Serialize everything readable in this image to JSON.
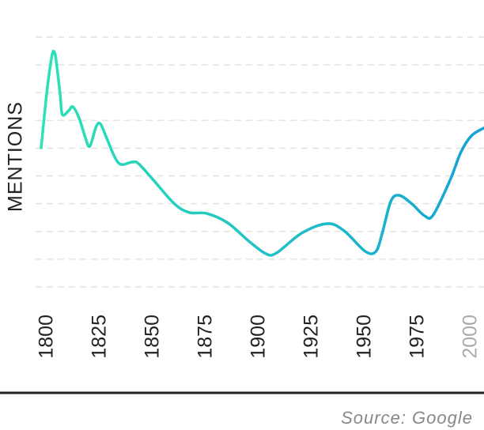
{
  "chart_data": {
    "type": "line",
    "y_label": "MENTIONS",
    "source": "Source: Google",
    "x": [
      1797,
      1798,
      1800,
      1802,
      1803,
      1804,
      1806,
      1807,
      1810,
      1812,
      1815,
      1818,
      1820,
      1823,
      1825,
      1828,
      1832,
      1835,
      1840,
      1843,
      1850,
      1860,
      1867,
      1875,
      1885,
      1895,
      1903,
      1908,
      1920,
      1932,
      1940,
      1950,
      1955,
      1958,
      1962,
      1966,
      1972,
      1978,
      1982,
      1990,
      1995,
      2000,
      2006
    ],
    "series": [
      {
        "name": "Mentions",
        "colors": [
          "#2de2b6",
          "#14a2d4"
        ],
        "values": [
          5.01,
          5.78,
          7.21,
          8.29,
          8.49,
          8.2,
          6.92,
          6.21,
          6.35,
          6.49,
          6.07,
          5.35,
          5.07,
          5.78,
          5.87,
          5.35,
          4.64,
          4.41,
          4.5,
          4.44,
          3.85,
          2.99,
          2.68,
          2.65,
          2.31,
          1.65,
          1.2,
          1.22,
          1.94,
          2.28,
          2.02,
          1.28,
          1.28,
          1.94,
          3.08,
          3.3,
          2.99,
          2.56,
          2.59,
          3.85,
          4.84,
          5.44,
          5.73
        ]
      }
    ],
    "xlim": [
      1797,
      2006
    ],
    "xticks": [
      1800,
      1825,
      1850,
      1875,
      1900,
      1925,
      1950,
      1975,
      2000
    ],
    "xtick_label_colors": [
      "#222",
      "#222",
      "#222",
      "#222",
      "#222",
      "#222",
      "#222",
      "#222",
      "#aaa"
    ],
    "ylim": [
      0,
      9
    ],
    "yticks": [
      0,
      1,
      2,
      3,
      4,
      5,
      6,
      7,
      8,
      9
    ],
    "grid": true
  }
}
